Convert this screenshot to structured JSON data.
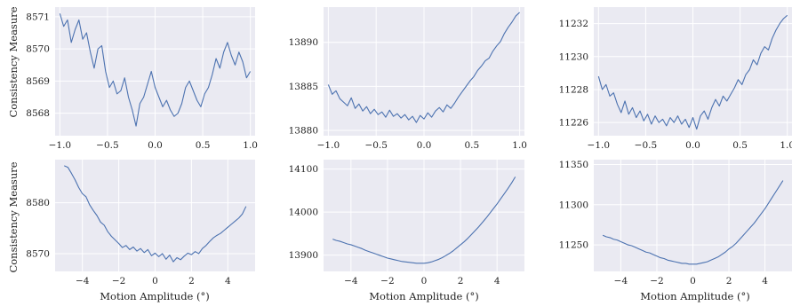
{
  "figure": {
    "ylabel": "Consistency Measure",
    "xlabel": "Motion Amplitude (°)"
  },
  "chart_data": [
    {
      "type": "line",
      "xlim": [
        -1.05,
        1.05
      ],
      "ylim": [
        8567.3,
        8571.3
      ],
      "xticks": [
        -1.0,
        -0.5,
        0.0,
        0.5,
        1.0
      ],
      "xtick_labels": [
        "−1.0",
        "−0.5",
        "0.0",
        "0.5",
        "1.0"
      ],
      "yticks": [
        8568,
        8569,
        8570,
        8571
      ],
      "ytick_labels": [
        "8568",
        "8569",
        "8570",
        "8571"
      ],
      "grid": true,
      "xlabel": "",
      "ylabel": "Consistency Measure",
      "series": [
        {
          "color": "#4c72b0",
          "x": [
            -1.0,
            -0.96,
            -0.92,
            -0.88,
            -0.84,
            -0.8,
            -0.76,
            -0.72,
            -0.68,
            -0.64,
            -0.6,
            -0.56,
            -0.52,
            -0.48,
            -0.44,
            -0.4,
            -0.36,
            -0.32,
            -0.28,
            -0.24,
            -0.2,
            -0.16,
            -0.12,
            -0.08,
            -0.04,
            0.0,
            0.04,
            0.08,
            0.12,
            0.16,
            0.2,
            0.24,
            0.28,
            0.32,
            0.36,
            0.4,
            0.44,
            0.48,
            0.52,
            0.56,
            0.6,
            0.64,
            0.68,
            0.72,
            0.76,
            0.8,
            0.84,
            0.88,
            0.92,
            0.96,
            1.0
          ],
          "y": [
            8571.1,
            8570.7,
            8570.9,
            8570.2,
            8570.6,
            8570.9,
            8570.3,
            8570.5,
            8569.9,
            8569.4,
            8570.0,
            8570.1,
            8569.3,
            8568.8,
            8569.0,
            8568.6,
            8568.7,
            8569.1,
            8568.5,
            8568.1,
            8567.6,
            8568.3,
            8568.5,
            8568.9,
            8569.3,
            8568.8,
            8568.5,
            8568.2,
            8568.4,
            8568.1,
            8567.9,
            8568.0,
            8568.3,
            8568.8,
            8569.0,
            8568.7,
            8568.4,
            8568.2,
            8568.6,
            8568.8,
            8569.2,
            8569.7,
            8569.4,
            8569.9,
            8570.2,
            8569.8,
            8569.5,
            8569.9,
            8569.6,
            8569.1,
            8569.3
          ]
        }
      ]
    },
    {
      "type": "line",
      "xlim": [
        -1.05,
        1.05
      ],
      "ylim": [
        13879.4,
        13894.0
      ],
      "xticks": [
        -1.0,
        -0.5,
        0.0,
        0.5,
        1.0
      ],
      "xtick_labels": [
        "−1.0",
        "−0.5",
        "0.0",
        "0.5",
        "1.0"
      ],
      "yticks": [
        13880,
        13885,
        13890
      ],
      "ytick_labels": [
        "13880",
        "13885",
        "13890"
      ],
      "grid": true,
      "xlabel": "",
      "ylabel": "",
      "series": [
        {
          "color": "#4c72b0",
          "x": [
            -1.0,
            -0.96,
            -0.92,
            -0.88,
            -0.84,
            -0.8,
            -0.76,
            -0.72,
            -0.68,
            -0.64,
            -0.6,
            -0.56,
            -0.52,
            -0.48,
            -0.44,
            -0.4,
            -0.36,
            -0.32,
            -0.28,
            -0.24,
            -0.2,
            -0.16,
            -0.12,
            -0.08,
            -0.04,
            0.0,
            0.04,
            0.08,
            0.12,
            0.16,
            0.2,
            0.24,
            0.28,
            0.32,
            0.36,
            0.4,
            0.44,
            0.48,
            0.52,
            0.56,
            0.6,
            0.64,
            0.68,
            0.72,
            0.76,
            0.8,
            0.84,
            0.88,
            0.92,
            0.96,
            1.0
          ],
          "y": [
            13885.2,
            13884.1,
            13884.5,
            13883.6,
            13883.2,
            13882.8,
            13883.7,
            13882.5,
            13883.0,
            13882.2,
            13882.7,
            13881.9,
            13882.4,
            13881.8,
            13882.1,
            13881.5,
            13882.3,
            13881.6,
            13881.9,
            13881.4,
            13881.8,
            13881.2,
            13881.6,
            13880.9,
            13881.7,
            13881.3,
            13882.0,
            13881.5,
            13882.2,
            13882.6,
            13882.1,
            13882.9,
            13882.5,
            13883.1,
            13883.8,
            13884.4,
            13885.0,
            13885.6,
            13886.1,
            13886.8,
            13887.3,
            13887.9,
            13888.2,
            13889.0,
            13889.6,
            13890.1,
            13891.0,
            13891.7,
            13892.3,
            13893.0,
            13893.4
          ]
        }
      ]
    },
    {
      "type": "line",
      "xlim": [
        -1.05,
        1.05
      ],
      "ylim": [
        11225.2,
        11233.0
      ],
      "xticks": [
        -1.0,
        -0.5,
        0.0,
        0.5,
        1.0
      ],
      "xtick_labels": [
        "−1.0",
        "−0.5",
        "0.0",
        "0.5",
        "1.0"
      ],
      "yticks": [
        11226,
        11228,
        11230,
        11232
      ],
      "ytick_labels": [
        "11226",
        "11228",
        "11230",
        "11232"
      ],
      "grid": true,
      "xlabel": "",
      "ylabel": "",
      "series": [
        {
          "color": "#4c72b0",
          "x": [
            -1.0,
            -0.96,
            -0.92,
            -0.88,
            -0.84,
            -0.8,
            -0.76,
            -0.72,
            -0.68,
            -0.64,
            -0.6,
            -0.56,
            -0.52,
            -0.48,
            -0.44,
            -0.4,
            -0.36,
            -0.32,
            -0.28,
            -0.24,
            -0.2,
            -0.16,
            -0.12,
            -0.08,
            -0.04,
            0.0,
            0.04,
            0.08,
            0.12,
            0.16,
            0.2,
            0.24,
            0.28,
            0.32,
            0.36,
            0.4,
            0.44,
            0.48,
            0.52,
            0.56,
            0.6,
            0.64,
            0.68,
            0.72,
            0.76,
            0.8,
            0.84,
            0.88,
            0.92,
            0.96,
            1.0
          ],
          "y": [
            11228.8,
            11228.0,
            11228.3,
            11227.6,
            11227.8,
            11227.1,
            11226.6,
            11227.3,
            11226.5,
            11226.9,
            11226.3,
            11226.7,
            11226.1,
            11226.5,
            11225.9,
            11226.4,
            11226.0,
            11226.2,
            11225.8,
            11226.3,
            11226.0,
            11226.4,
            11225.9,
            11226.2,
            11225.7,
            11226.3,
            11225.6,
            11226.4,
            11226.7,
            11226.2,
            11226.9,
            11227.4,
            11227.0,
            11227.6,
            11227.3,
            11227.7,
            11228.1,
            11228.6,
            11228.3,
            11228.9,
            11229.2,
            11229.8,
            11229.5,
            11230.2,
            11230.6,
            11230.4,
            11231.1,
            11231.6,
            11232.0,
            11232.3,
            11232.5
          ]
        }
      ]
    },
    {
      "type": "line",
      "xlim": [
        -5.5,
        5.5
      ],
      "ylim": [
        8566.5,
        8588.5
      ],
      "xticks": [
        -4,
        -2,
        0,
        2,
        4
      ],
      "xtick_labels": [
        "−4",
        "−2",
        "0",
        "2",
        "4"
      ],
      "yticks": [
        8570,
        8580
      ],
      "ytick_labels": [
        "8570",
        "8580"
      ],
      "grid": true,
      "xlabel": "Motion Amplitude (°)",
      "ylabel": "Consistency Measure",
      "series": [
        {
          "color": "#4c72b0",
          "x": [
            -5.0,
            -4.8,
            -4.6,
            -4.4,
            -4.2,
            -4.0,
            -3.8,
            -3.6,
            -3.4,
            -3.2,
            -3.0,
            -2.8,
            -2.6,
            -2.4,
            -2.2,
            -2.0,
            -1.8,
            -1.6,
            -1.4,
            -1.2,
            -1.0,
            -0.8,
            -0.6,
            -0.4,
            -0.2,
            0.0,
            0.2,
            0.4,
            0.6,
            0.8,
            1.0,
            1.2,
            1.4,
            1.6,
            1.8,
            2.0,
            2.2,
            2.4,
            2.6,
            2.8,
            3.0,
            3.2,
            3.4,
            3.6,
            3.8,
            4.0,
            4.2,
            4.4,
            4.6,
            4.8,
            5.0
          ],
          "y": [
            8587.3,
            8587.0,
            8585.8,
            8584.5,
            8583.0,
            8581.8,
            8581.2,
            8579.6,
            8578.5,
            8577.5,
            8576.2,
            8575.6,
            8574.3,
            8573.4,
            8572.7,
            8572.0,
            8571.2,
            8571.6,
            8570.8,
            8571.3,
            8570.5,
            8571.0,
            8570.2,
            8570.8,
            8569.6,
            8570.1,
            8569.4,
            8570.0,
            8568.9,
            8569.7,
            8568.4,
            8569.2,
            8568.8,
            8569.5,
            8570.1,
            8569.8,
            8570.4,
            8570.0,
            8571.0,
            8571.6,
            8572.4,
            8573.1,
            8573.6,
            8574.0,
            8574.6,
            8575.2,
            8575.8,
            8576.4,
            8577.0,
            8577.8,
            8579.3
          ]
        }
      ]
    },
    {
      "type": "line",
      "xlim": [
        -5.5,
        5.5
      ],
      "ylim": [
        13862,
        14122
      ],
      "xticks": [
        -4,
        -2,
        0,
        2,
        4
      ],
      "xtick_labels": [
        "−4",
        "−2",
        "0",
        "2",
        "4"
      ],
      "yticks": [
        13900,
        14000,
        14100
      ],
      "ytick_labels": [
        "13900",
        "14000",
        "14100"
      ],
      "grid": true,
      "xlabel": "Motion Amplitude (°)",
      "ylabel": "",
      "series": [
        {
          "color": "#4c72b0",
          "x": [
            -5.0,
            -4.8,
            -4.6,
            -4.4,
            -4.2,
            -4.0,
            -3.8,
            -3.6,
            -3.4,
            -3.2,
            -3.0,
            -2.8,
            -2.6,
            -2.4,
            -2.2,
            -2.0,
            -1.8,
            -1.6,
            -1.4,
            -1.2,
            -1.0,
            -0.8,
            -0.6,
            -0.4,
            -0.2,
            0.0,
            0.2,
            0.4,
            0.6,
            0.8,
            1.0,
            1.2,
            1.4,
            1.6,
            1.8,
            2.0,
            2.2,
            2.4,
            2.6,
            2.8,
            3.0,
            3.2,
            3.4,
            3.6,
            3.8,
            4.0,
            4.2,
            4.4,
            4.6,
            4.8,
            5.0
          ],
          "y": [
            13937,
            13934,
            13932,
            13929,
            13926,
            13924,
            13921,
            13918,
            13915,
            13911,
            13908,
            13905,
            13902,
            13899,
            13896,
            13893,
            13891,
            13889,
            13887,
            13885,
            13884,
            13883,
            13882,
            13881,
            13881,
            13881,
            13882,
            13884,
            13887,
            13890,
            13894,
            13899,
            13904,
            13910,
            13917,
            13924,
            13931,
            13939,
            13948,
            13957,
            13966,
            13976,
            13986,
            13997,
            14008,
            14019,
            14031,
            14043,
            14055,
            14068,
            14082
          ]
        }
      ]
    },
    {
      "type": "line",
      "xlim": [
        -5.5,
        5.5
      ],
      "ylim": [
        11217,
        11356
      ],
      "xticks": [
        -4,
        -2,
        0,
        2,
        4
      ],
      "xtick_labels": [
        "−4",
        "−2",
        "0",
        "2",
        "4"
      ],
      "yticks": [
        11250,
        11300,
        11350
      ],
      "ytick_labels": [
        "11250",
        "11300",
        "11350"
      ],
      "grid": true,
      "xlabel": "Motion Amplitude (°)",
      "ylabel": "",
      "series": [
        {
          "color": "#4c72b0",
          "x": [
            -5.0,
            -4.8,
            -4.6,
            -4.4,
            -4.2,
            -4.0,
            -3.8,
            -3.6,
            -3.4,
            -3.2,
            -3.0,
            -2.8,
            -2.6,
            -2.4,
            -2.2,
            -2.0,
            -1.8,
            -1.6,
            -1.4,
            -1.2,
            -1.0,
            -0.8,
            -0.6,
            -0.4,
            -0.2,
            0.0,
            0.2,
            0.4,
            0.6,
            0.8,
            1.0,
            1.2,
            1.4,
            1.6,
            1.8,
            2.0,
            2.2,
            2.4,
            2.6,
            2.8,
            3.0,
            3.2,
            3.4,
            3.6,
            3.8,
            4.0,
            4.2,
            4.4,
            4.6,
            4.8,
            5.0
          ],
          "y": [
            11262,
            11260,
            11259,
            11257,
            11256,
            11254,
            11252,
            11250,
            11249,
            11247,
            11245,
            11243,
            11241,
            11240,
            11238,
            11236,
            11234,
            11233,
            11231,
            11230,
            11229,
            11228,
            11227,
            11227,
            11226,
            11226,
            11226,
            11227,
            11228,
            11229,
            11231,
            11233,
            11235,
            11238,
            11241,
            11245,
            11248,
            11252,
            11257,
            11262,
            11267,
            11272,
            11277,
            11283,
            11289,
            11295,
            11302,
            11309,
            11316,
            11323,
            11330
          ]
        }
      ]
    }
  ]
}
